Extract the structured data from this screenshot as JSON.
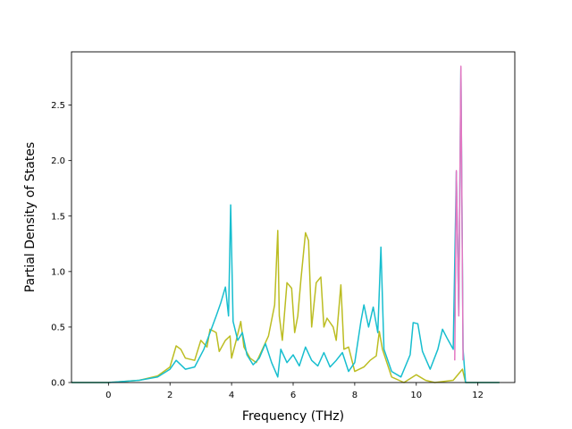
{
  "chart_data": {
    "type": "line",
    "xlabel": "Frequency (THz)",
    "ylabel": "Partial Density of States",
    "xlim": [
      -1.2,
      13.2
    ],
    "ylim": [
      0.0,
      2.98
    ],
    "xticks": [
      "0",
      "2",
      "4",
      "6",
      "8",
      "10",
      "12"
    ],
    "yticks": [
      "0.0",
      "0.5",
      "1.0",
      "1.5",
      "2.0",
      "2.5"
    ],
    "grid": false,
    "series": [
      {
        "color": "#bcbd22",
        "points": [
          [
            -1.2,
            0
          ],
          [
            0,
            0
          ],
          [
            1.0,
            0.02
          ],
          [
            1.6,
            0.06
          ],
          [
            2.0,
            0.14
          ],
          [
            2.2,
            0.33
          ],
          [
            2.35,
            0.3
          ],
          [
            2.5,
            0.22
          ],
          [
            2.8,
            0.2
          ],
          [
            3.0,
            0.38
          ],
          [
            3.2,
            0.32
          ],
          [
            3.3,
            0.48
          ],
          [
            3.5,
            0.45
          ],
          [
            3.6,
            0.28
          ],
          [
            3.8,
            0.38
          ],
          [
            3.95,
            0.42
          ],
          [
            4.0,
            0.22
          ],
          [
            4.15,
            0.38
          ],
          [
            4.3,
            0.55
          ],
          [
            4.4,
            0.32
          ],
          [
            4.6,
            0.22
          ],
          [
            4.8,
            0.18
          ],
          [
            5.0,
            0.3
          ],
          [
            5.2,
            0.42
          ],
          [
            5.4,
            0.7
          ],
          [
            5.5,
            1.37
          ],
          [
            5.55,
            0.6
          ],
          [
            5.65,
            0.38
          ],
          [
            5.8,
            0.9
          ],
          [
            5.95,
            0.85
          ],
          [
            6.05,
            0.45
          ],
          [
            6.15,
            0.6
          ],
          [
            6.25,
            0.92
          ],
          [
            6.4,
            1.35
          ],
          [
            6.5,
            1.28
          ],
          [
            6.6,
            0.5
          ],
          [
            6.75,
            0.9
          ],
          [
            6.9,
            0.95
          ],
          [
            7.0,
            0.5
          ],
          [
            7.1,
            0.58
          ],
          [
            7.3,
            0.5
          ],
          [
            7.4,
            0.38
          ],
          [
            7.55,
            0.88
          ],
          [
            7.65,
            0.3
          ],
          [
            7.8,
            0.32
          ],
          [
            8.0,
            0.1
          ],
          [
            8.3,
            0.14
          ],
          [
            8.5,
            0.2
          ],
          [
            8.7,
            0.24
          ],
          [
            8.8,
            0.46
          ],
          [
            8.9,
            0.3
          ],
          [
            9.2,
            0.05
          ],
          [
            9.6,
            0.0
          ],
          [
            10.0,
            0.07
          ],
          [
            10.3,
            0.02
          ],
          [
            10.6,
            0.0
          ],
          [
            11.2,
            0.02
          ],
          [
            11.5,
            0.12
          ],
          [
            11.6,
            0.0
          ],
          [
            12.7,
            0.0
          ]
        ]
      },
      {
        "color": "#17becf",
        "points": [
          [
            -1.2,
            0
          ],
          [
            0,
            0
          ],
          [
            1.0,
            0.02
          ],
          [
            1.6,
            0.05
          ],
          [
            2.0,
            0.12
          ],
          [
            2.2,
            0.2
          ],
          [
            2.5,
            0.12
          ],
          [
            2.8,
            0.14
          ],
          [
            3.1,
            0.3
          ],
          [
            3.3,
            0.45
          ],
          [
            3.5,
            0.6
          ],
          [
            3.65,
            0.72
          ],
          [
            3.8,
            0.86
          ],
          [
            3.9,
            0.6
          ],
          [
            3.97,
            1.6
          ],
          [
            4.05,
            0.55
          ],
          [
            4.2,
            0.38
          ],
          [
            4.35,
            0.45
          ],
          [
            4.5,
            0.25
          ],
          [
            4.7,
            0.16
          ],
          [
            4.9,
            0.22
          ],
          [
            5.1,
            0.35
          ],
          [
            5.3,
            0.18
          ],
          [
            5.5,
            0.05
          ],
          [
            5.6,
            0.3
          ],
          [
            5.8,
            0.18
          ],
          [
            6.0,
            0.25
          ],
          [
            6.2,
            0.15
          ],
          [
            6.4,
            0.32
          ],
          [
            6.6,
            0.2
          ],
          [
            6.8,
            0.15
          ],
          [
            7.0,
            0.27
          ],
          [
            7.2,
            0.14
          ],
          [
            7.4,
            0.2
          ],
          [
            7.6,
            0.27
          ],
          [
            7.8,
            0.1
          ],
          [
            8.0,
            0.18
          ],
          [
            8.2,
            0.55
          ],
          [
            8.3,
            0.7
          ],
          [
            8.45,
            0.5
          ],
          [
            8.6,
            0.68
          ],
          [
            8.75,
            0.45
          ],
          [
            8.85,
            1.22
          ],
          [
            8.95,
            0.3
          ],
          [
            9.2,
            0.1
          ],
          [
            9.5,
            0.05
          ],
          [
            9.8,
            0.25
          ],
          [
            9.9,
            0.54
          ],
          [
            10.05,
            0.53
          ],
          [
            10.2,
            0.28
          ],
          [
            10.45,
            0.12
          ],
          [
            10.7,
            0.3
          ],
          [
            10.85,
            0.48
          ],
          [
            11.0,
            0.4
          ],
          [
            11.2,
            0.3
          ],
          [
            11.3,
            1.9
          ],
          [
            11.38,
            0.62
          ],
          [
            11.45,
            2.83
          ],
          [
            11.52,
            0.3
          ],
          [
            11.6,
            0.0
          ],
          [
            12.7,
            0.0
          ]
        ]
      },
      {
        "color": "#e377c2",
        "points": [
          [
            11.25,
            0.2
          ],
          [
            11.3,
            1.91
          ],
          [
            11.38,
            0.6
          ],
          [
            11.45,
            2.85
          ],
          [
            11.52,
            0.2
          ]
        ]
      }
    ]
  }
}
